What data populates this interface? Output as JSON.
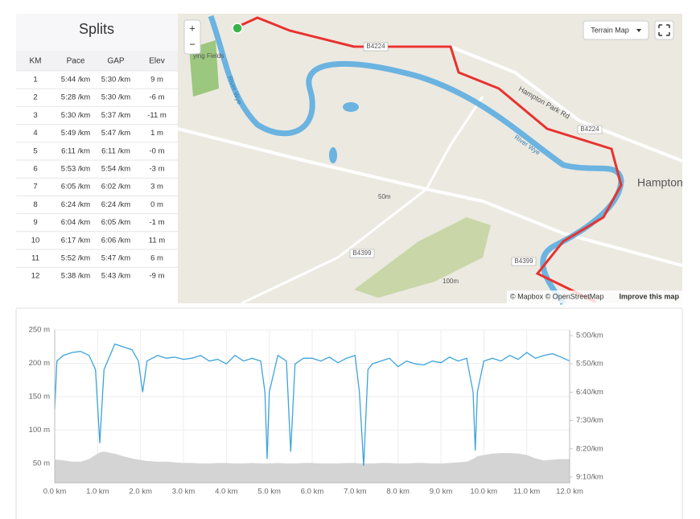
{
  "splits": {
    "title": "Splits",
    "columns": [
      "KM",
      "Pace",
      "GAP",
      "Elev"
    ],
    "rows": [
      [
        "1",
        "5:44 /km",
        "5:30 /km",
        "9 m"
      ],
      [
        "2",
        "5:28 /km",
        "5:30 /km",
        "-6 m"
      ],
      [
        "3",
        "5:30 /km",
        "5:37 /km",
        "-11 m"
      ],
      [
        "4",
        "5:49 /km",
        "5:47 /km",
        "1 m"
      ],
      [
        "5",
        "6:11 /km",
        "6:11 /km",
        "-0 m"
      ],
      [
        "6",
        "5:53 /km",
        "5:54 /km",
        "-3 m"
      ],
      [
        "7",
        "6:05 /km",
        "6:02 /km",
        "3 m"
      ],
      [
        "8",
        "6:24 /km",
        "6:24 /km",
        "0 m"
      ],
      [
        "9",
        "6:04 /km",
        "6:05 /km",
        "-1 m"
      ],
      [
        "10",
        "6:17 /km",
        "6:06 /km",
        "11 m"
      ],
      [
        "11",
        "5:52 /km",
        "5:47 /km",
        "6 m"
      ],
      [
        "12",
        "5:38 /km",
        "5:43 /km",
        "-9 m"
      ]
    ]
  },
  "map": {
    "zoom_in": "+",
    "zoom_out": "−",
    "style_button": "Terrain Map",
    "labels": {
      "b4224_a": "B4224",
      "b4224_b": "B4224",
      "road": "Hampton Park Rd",
      "town": "Hampton",
      "b4399_a": "B4399",
      "b4399_b": "B4399",
      "fields": "ying Fields",
      "river_a": "River Wye",
      "river_b": "River Wye",
      "contour_a": "50m",
      "contour_b": "100m"
    },
    "attribution": "© Mapbox © OpenStreetMap",
    "improve": "Improve this map"
  },
  "chart_data": {
    "type": "line",
    "x": [
      0,
      0.05,
      0.2,
      0.4,
      0.6,
      0.8,
      0.95,
      1.05,
      1.15,
      1.4,
      1.6,
      1.8,
      1.95,
      2.05,
      2.15,
      2.4,
      2.6,
      2.8,
      3.0,
      3.2,
      3.4,
      3.6,
      3.8,
      4.0,
      4.2,
      4.4,
      4.6,
      4.8,
      4.9,
      4.95,
      5.0,
      5.2,
      5.4,
      5.5,
      5.6,
      5.8,
      6.0,
      6.2,
      6.4,
      6.6,
      6.8,
      7.0,
      7.1,
      7.2,
      7.3,
      7.4,
      7.6,
      7.8,
      8.0,
      8.2,
      8.4,
      8.6,
      8.8,
      9.0,
      9.2,
      9.4,
      9.6,
      9.75,
      9.8,
      9.85,
      10.0,
      10.2,
      10.4,
      10.6,
      10.8,
      11.0,
      11.2,
      11.4,
      11.6,
      11.8,
      12.0
    ],
    "series": [
      {
        "color": "#3da3dc",
        "axis": "y2",
        "values": [
          430,
          345,
          335,
          330,
          328,
          335,
          360,
          490,
          360,
          315,
          320,
          325,
          345,
          400,
          345,
          335,
          340,
          338,
          342,
          340,
          335,
          345,
          342,
          350,
          335,
          345,
          340,
          345,
          400,
          518,
          400,
          335,
          345,
          505,
          350,
          340,
          340,
          345,
          338,
          348,
          340,
          335,
          400,
          530,
          360,
          350,
          345,
          340,
          355,
          345,
          350,
          352,
          345,
          348,
          338,
          345,
          340,
          400,
          503,
          400,
          345,
          340,
          345,
          335,
          342,
          330,
          340,
          335,
          332,
          338,
          345
        ]
      },
      {
        "color": "#d4d4d4",
        "fill": true,
        "values": [
          55,
          55,
          54,
          52,
          52,
          56,
          62,
          66,
          67,
          64,
          60,
          57,
          55,
          54,
          53,
          52,
          52,
          51,
          50,
          50,
          49,
          49,
          50,
          50,
          49,
          49,
          50,
          49,
          49,
          49,
          49,
          50,
          49,
          49,
          49,
          50,
          50,
          49,
          49,
          49,
          50,
          50,
          49,
          49,
          49,
          49,
          50,
          50,
          49,
          49,
          50,
          50,
          49,
          49,
          50,
          51,
          52,
          56,
          58,
          60,
          62,
          64,
          65,
          65,
          64,
          62,
          57,
          54,
          55,
          56,
          56
        ]
      }
    ],
    "xlim": [
      0,
      12
    ],
    "xticks": [
      {
        "value": 0,
        "label": "0.0 km"
      },
      {
        "value": 1,
        "label": "1.0 km"
      },
      {
        "value": 2,
        "label": "2.0 km"
      },
      {
        "value": 3,
        "label": "3.0 km"
      },
      {
        "value": 4,
        "label": "4.0 km"
      },
      {
        "value": 5,
        "label": "5.0 km"
      },
      {
        "value": 6,
        "label": "6.0 km"
      },
      {
        "value": 7,
        "label": "7.0 km"
      },
      {
        "value": 8,
        "label": "8.0 km"
      },
      {
        "value": 9,
        "label": "9.0 km"
      },
      {
        "value": 10,
        "label": "10.0 km"
      },
      {
        "value": 11,
        "label": "11.0 km"
      },
      {
        "value": 12,
        "label": "12.0 km"
      }
    ],
    "ylim": [
      21,
      250
    ],
    "yticks": [
      {
        "value": 50,
        "label": "50 m"
      },
      {
        "value": 100,
        "label": "100 m"
      },
      {
        "value": 150,
        "label": "150 m"
      },
      {
        "value": 200,
        "label": "200 m"
      },
      {
        "value": 250,
        "label": "250 m"
      }
    ],
    "y2lim": [
      290,
      560
    ],
    "y2_reversed": true,
    "y2ticks": [
      {
        "value": 300,
        "label": "5:00/km"
      },
      {
        "value": 350,
        "label": "5:50/km"
      },
      {
        "value": 400,
        "label": "6:40/km"
      },
      {
        "value": 450,
        "label": "7:30/km"
      },
      {
        "value": 500,
        "label": "8:20/km"
      },
      {
        "value": 550,
        "label": "9:10/km"
      }
    ],
    "grid": true
  }
}
